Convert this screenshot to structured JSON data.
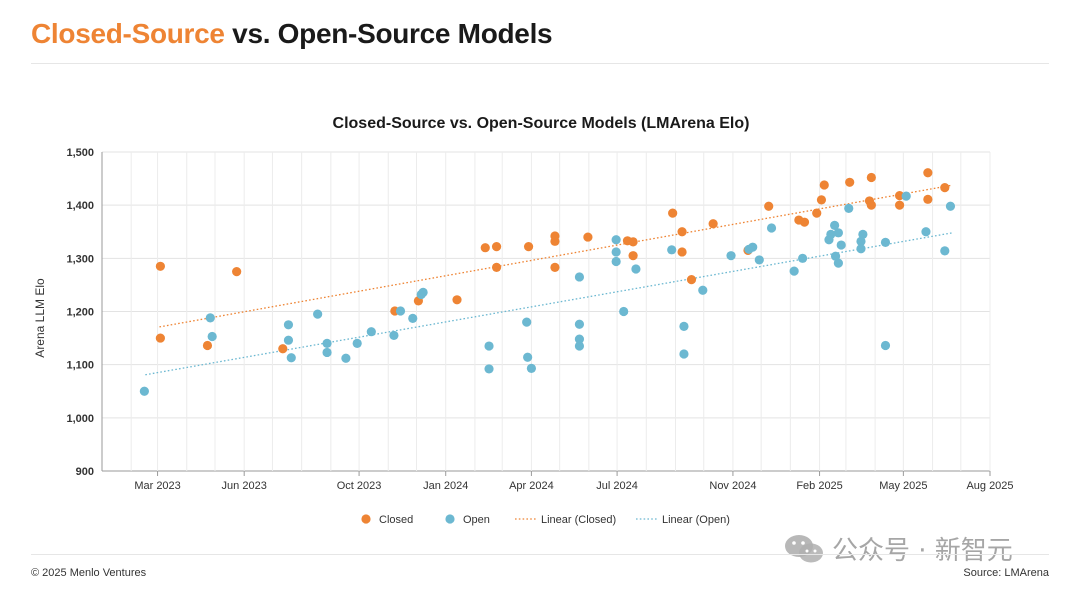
{
  "header": {
    "title_accent": "Closed-Source",
    "title_rest": " vs. Open-Source Models"
  },
  "colors": {
    "closed": "#EE8434",
    "open": "#6CB8D1",
    "accent": "#EE8434"
  },
  "chart_data": {
    "type": "scatter",
    "title": "Closed-Source vs. Open-Source Models (LMArena Elo)",
    "xlabel": "",
    "ylabel": "Arena LLM Elo",
    "ylim": [
      900,
      1500
    ],
    "yticks": [
      900,
      1000,
      1100,
      1200,
      1300,
      1400,
      1500
    ],
    "ytick_labels": [
      "900",
      "1,000",
      "1,100",
      "1,200",
      "1,300",
      "1,400",
      "1,500"
    ],
    "xlim": [
      "2023-01-01",
      "2025-08-01"
    ],
    "xticks": [
      "2023-03-01",
      "2023-06-01",
      "2023-10-01",
      "2024-01-01",
      "2024-04-01",
      "2024-07-01",
      "2024-11-01",
      "2025-02-01",
      "2025-05-01",
      "2025-08-01"
    ],
    "xtick_labels": [
      "Mar 2023",
      "Jun 2023",
      "Oct 2023",
      "Jan 2024",
      "Apr 2024",
      "Jul 2024",
      "Nov 2024",
      "Feb 2025",
      "May 2025",
      "Aug 2025"
    ],
    "grid": true,
    "legend_position": "bottom",
    "series": [
      {
        "name": "Closed",
        "color": "#EE8434",
        "points": [
          [
            "2023-03-04",
            1150
          ],
          [
            "2023-03-04",
            1285
          ],
          [
            "2023-04-23",
            1136
          ],
          [
            "2023-05-24",
            1275
          ],
          [
            "2023-07-12",
            1130
          ],
          [
            "2023-11-08",
            1201
          ],
          [
            "2023-12-03",
            1220
          ],
          [
            "2024-01-13",
            1222
          ],
          [
            "2024-02-12",
            1320
          ],
          [
            "2024-02-24",
            1322
          ],
          [
            "2024-02-24",
            1283
          ],
          [
            "2024-03-29",
            1322
          ],
          [
            "2024-04-26",
            1342
          ],
          [
            "2024-04-26",
            1332
          ],
          [
            "2024-04-26",
            1283
          ],
          [
            "2024-05-31",
            1340
          ],
          [
            "2024-07-12",
            1333
          ],
          [
            "2024-07-18",
            1305
          ],
          [
            "2024-07-18",
            1331
          ],
          [
            "2024-08-29",
            1385
          ],
          [
            "2024-09-08",
            1350
          ],
          [
            "2024-09-08",
            1312
          ],
          [
            "2024-09-18",
            1260
          ],
          [
            "2024-10-11",
            1365
          ],
          [
            "2024-11-17",
            1315
          ],
          [
            "2024-12-09",
            1398
          ],
          [
            "2025-01-10",
            1372
          ],
          [
            "2025-01-16",
            1368
          ],
          [
            "2025-01-29",
            1385
          ],
          [
            "2025-02-03",
            1410
          ],
          [
            "2025-02-06",
            1438
          ],
          [
            "2025-03-05",
            1443
          ],
          [
            "2025-03-26",
            1408
          ],
          [
            "2025-03-28",
            1400
          ],
          [
            "2025-03-28",
            1452
          ],
          [
            "2025-04-27",
            1418
          ],
          [
            "2025-04-27",
            1400
          ],
          [
            "2025-05-27",
            1461
          ],
          [
            "2025-05-27",
            1411
          ],
          [
            "2025-06-14",
            1433
          ]
        ]
      },
      {
        "name": "Open",
        "color": "#6CB8D1",
        "points": [
          [
            "2023-02-15",
            1050
          ],
          [
            "2023-04-26",
            1188
          ],
          [
            "2023-04-28",
            1153
          ],
          [
            "2023-07-18",
            1175
          ],
          [
            "2023-07-18",
            1146
          ],
          [
            "2023-07-21",
            1113
          ],
          [
            "2023-08-18",
            1195
          ],
          [
            "2023-08-28",
            1140
          ],
          [
            "2023-08-28",
            1123
          ],
          [
            "2023-09-17",
            1112
          ],
          [
            "2023-09-29",
            1140
          ],
          [
            "2023-10-14",
            1162
          ],
          [
            "2023-11-07",
            1155
          ],
          [
            "2023-11-14",
            1201
          ],
          [
            "2023-11-27",
            1187
          ],
          [
            "2023-12-06",
            1232
          ],
          [
            "2023-12-08",
            1236
          ],
          [
            "2024-02-16",
            1135
          ],
          [
            "2024-02-16",
            1092
          ],
          [
            "2024-03-27",
            1180
          ],
          [
            "2024-03-28",
            1114
          ],
          [
            "2024-04-01",
            1093
          ],
          [
            "2024-05-22",
            1265
          ],
          [
            "2024-05-22",
            1176
          ],
          [
            "2024-05-22",
            1148
          ],
          [
            "2024-05-22",
            1135
          ],
          [
            "2024-06-30",
            1335
          ],
          [
            "2024-06-30",
            1312
          ],
          [
            "2024-06-30",
            1294
          ],
          [
            "2024-07-08",
            1200
          ],
          [
            "2024-07-21",
            1280
          ],
          [
            "2024-08-28",
            1316
          ],
          [
            "2024-09-10",
            1172
          ],
          [
            "2024-09-10",
            1120
          ],
          [
            "2024-09-30",
            1240
          ],
          [
            "2024-10-30",
            1305
          ],
          [
            "2024-11-18",
            1317
          ],
          [
            "2024-11-22",
            1321
          ],
          [
            "2024-11-29",
            1297
          ],
          [
            "2024-12-12",
            1357
          ],
          [
            "2025-01-05",
            1276
          ],
          [
            "2025-01-14",
            1300
          ],
          [
            "2025-02-11",
            1335
          ],
          [
            "2025-02-13",
            1345
          ],
          [
            "2025-02-17",
            1362
          ],
          [
            "2025-02-18",
            1304
          ],
          [
            "2025-02-21",
            1291
          ],
          [
            "2025-02-21",
            1348
          ],
          [
            "2025-02-24",
            1325
          ],
          [
            "2025-03-04",
            1394
          ],
          [
            "2025-03-17",
            1318
          ],
          [
            "2025-03-17",
            1332
          ],
          [
            "2025-03-19",
            1345
          ],
          [
            "2025-04-12",
            1330
          ],
          [
            "2025-04-12",
            1136
          ],
          [
            "2025-05-04",
            1417
          ],
          [
            "2025-05-25",
            1350
          ],
          [
            "2025-06-14",
            1314
          ],
          [
            "2025-06-20",
            1398
          ]
        ]
      }
    ],
    "trendlines": [
      {
        "name": "Linear (Closed)",
        "color": "#EE8434",
        "from": [
          "2023-03-03",
          1171
        ],
        "to": [
          "2025-06-20",
          1437
        ]
      },
      {
        "name": "Linear (Open)",
        "color": "#6CB8D1",
        "from": [
          "2023-02-16",
          1081
        ],
        "to": [
          "2025-06-22",
          1348
        ]
      }
    ],
    "legend": [
      "Closed",
      "Open",
      "Linear (Closed)",
      "Linear (Open)"
    ]
  },
  "footer": {
    "copyright": "© 2025 Menlo Ventures",
    "source": "Source: LMArena"
  },
  "watermark": {
    "text": "公众号 · 新智元"
  }
}
